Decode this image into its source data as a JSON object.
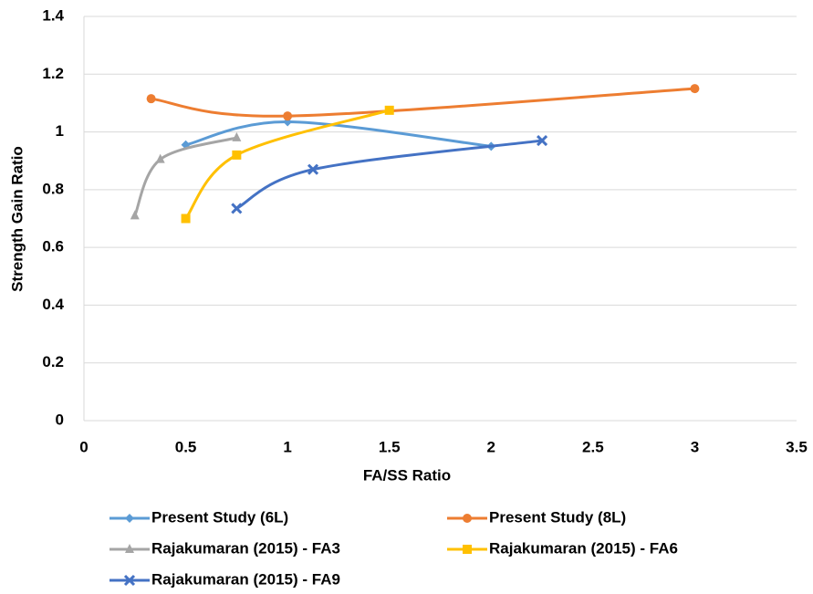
{
  "chart_data": {
    "type": "line",
    "x_label": "FA/SS Ratio",
    "y_label": "Strength Gain Ratio",
    "xlim": [
      0,
      3.5
    ],
    "xticks": [
      0,
      0.5,
      1,
      1.5,
      2,
      2.5,
      3,
      3.5
    ],
    "ylim": [
      0,
      1.4
    ],
    "yticks": [
      0,
      0.2,
      0.4,
      0.6,
      0.8,
      1,
      1.2,
      1.4
    ],
    "grid": true,
    "smooth": true,
    "legend": "bottom",
    "series": [
      {
        "name": "Present Study (6L)",
        "color": "#5b9bd5",
        "marker": "diamond",
        "x": [
          0.5,
          1,
          2
        ],
        "values": [
          0.955,
          1.035,
          0.95
        ]
      },
      {
        "name": "Present Study (8L)",
        "color": "#ed7d31",
        "marker": "circle",
        "x": [
          0.33,
          1,
          3
        ],
        "values": [
          1.115,
          1.055,
          1.15
        ]
      },
      {
        "name": "Rajakumaran (2015) - FA3",
        "color": "#a5a5a5",
        "marker": "triangle",
        "x": [
          0.25,
          0.375,
          0.75
        ],
        "values": [
          0.71,
          0.905,
          0.98
        ]
      },
      {
        "name": "Rajakumaran (2015) - FA6",
        "color": "#ffc000",
        "marker": "square",
        "x": [
          0.5,
          0.75,
          1.5
        ],
        "values": [
          0.7,
          0.92,
          1.075
        ]
      },
      {
        "name": "Rajakumaran (2015) - FA9",
        "color": "#4472c4",
        "marker": "cross",
        "x": [
          0.75,
          1.125,
          2.25
        ],
        "values": [
          0.735,
          0.87,
          0.97
        ]
      }
    ]
  }
}
